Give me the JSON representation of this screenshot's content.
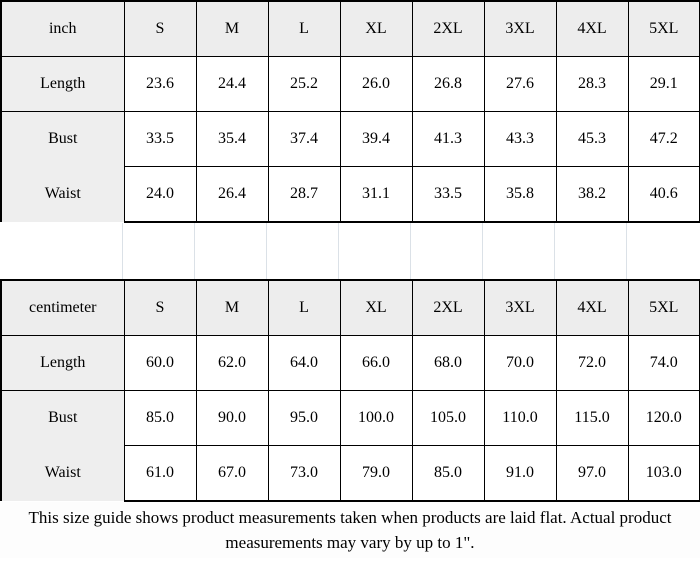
{
  "chart_data": [
    {
      "type": "table",
      "unit": "inch",
      "sizes": [
        "S",
        "M",
        "L",
        "XL",
        "2XL",
        "3XL",
        "4XL",
        "5XL"
      ],
      "rows": [
        {
          "label": "Length",
          "values": [
            "23.6",
            "24.4",
            "25.2",
            "26.0",
            "26.8",
            "27.6",
            "28.3",
            "29.1"
          ]
        },
        {
          "label": "Bust",
          "values": [
            "33.5",
            "35.4",
            "37.4",
            "39.4",
            "41.3",
            "43.3",
            "45.3",
            "47.2"
          ]
        },
        {
          "label": "Waist",
          "values": [
            "24.0",
            "26.4",
            "28.7",
            "31.1",
            "33.5",
            "35.8",
            "38.2",
            "40.6"
          ]
        }
      ]
    },
    {
      "type": "table",
      "unit": "centimeter",
      "sizes": [
        "S",
        "M",
        "L",
        "XL",
        "2XL",
        "3XL",
        "4XL",
        "5XL"
      ],
      "rows": [
        {
          "label": "Length",
          "values": [
            "60.0",
            "62.0",
            "64.0",
            "66.0",
            "68.0",
            "70.0",
            "72.0",
            "74.0"
          ]
        },
        {
          "label": "Bust",
          "values": [
            "85.0",
            "90.0",
            "95.0",
            "100.0",
            "105.0",
            "110.0",
            "115.0",
            "120.0"
          ]
        },
        {
          "label": "Waist",
          "values": [
            "61.0",
            "67.0",
            "73.0",
            "79.0",
            "85.0",
            "91.0",
            "97.0",
            "103.0"
          ]
        }
      ]
    }
  ],
  "footer": {
    "note": "This size guide shows product measurements taken when products are laid flat. Actual product measurements may vary by up to 1\"."
  },
  "colors": {
    "header_bg": "#ededed",
    "label_bg": "#eeeeee",
    "border": "#000000",
    "gridline": "#dbe1e7",
    "page_bg": "#ffffff"
  }
}
